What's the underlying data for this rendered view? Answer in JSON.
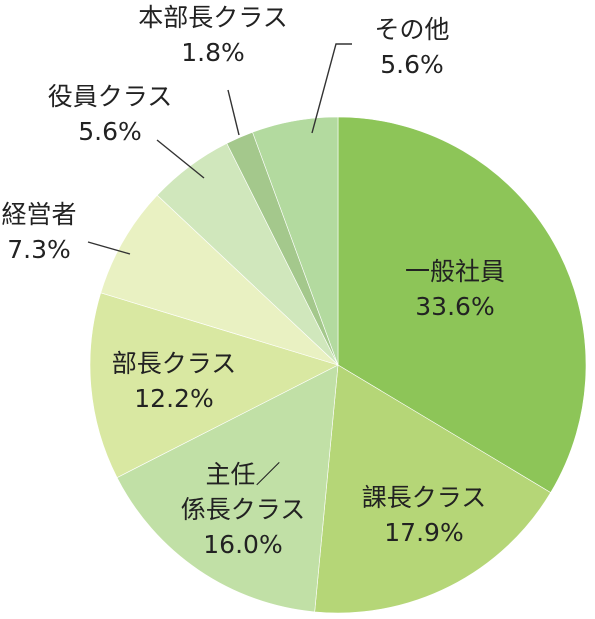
{
  "chart_data": {
    "type": "pie",
    "title": "",
    "start": "12 o'clock",
    "direction": "clockwise",
    "legend": "none",
    "slices": [
      {
        "name": "一般社員",
        "value": 33.6,
        "label": "33.6%",
        "color": "#8dc558"
      },
      {
        "name": "課長クラス",
        "value": 17.9,
        "label": "17.9%",
        "color": "#b5d677"
      },
      {
        "name": "主任／係長クラス",
        "name_lines": [
          "主任／",
          "係長クラス"
        ],
        "value": 16.0,
        "label": "16.0%",
        "color": "#c1e0a6"
      },
      {
        "name": "部長クラス",
        "value": 12.2,
        "label": "12.2%",
        "color": "#d9e8a2"
      },
      {
        "name": "経営者",
        "value": 7.3,
        "label": "7.3%",
        "color": "#e9f1c2"
      },
      {
        "name": "役員クラス",
        "value": 5.6,
        "label": "5.6%",
        "color": "#d0e7bc"
      },
      {
        "name": "本部長クラス",
        "value": 1.8,
        "label": "1.8%",
        "color": "#a4c88c"
      },
      {
        "name": "その他",
        "value": 5.6,
        "label": "5.6%",
        "color": "#b3da9f"
      }
    ]
  }
}
